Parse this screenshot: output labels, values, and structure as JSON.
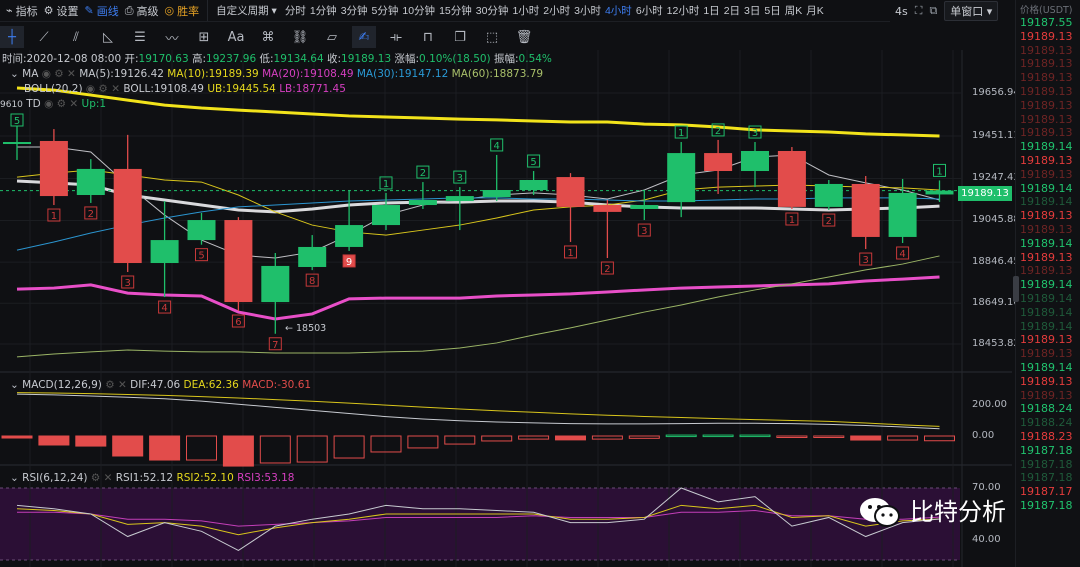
{
  "toolbar": {
    "items": [
      {
        "label": "指标",
        "icon": "chart-icon"
      },
      {
        "label": "设置",
        "icon": "gear-icon"
      },
      {
        "label": "画线",
        "icon": "pen-icon",
        "active": true
      },
      {
        "label": "高级",
        "icon": "printer-icon"
      },
      {
        "label": "胜率",
        "icon": "target-icon",
        "color": "#e7a325"
      }
    ],
    "custom_period": "自定义周期",
    "periods": [
      "分时",
      "1分钟",
      "3分钟",
      "5分钟",
      "10分钟",
      "15分钟",
      "30分钟",
      "1小时",
      "2小时",
      "3小时",
      "4小时",
      "6小时",
      "12小时",
      "1日",
      "2日",
      "3日",
      "5日",
      "周K",
      "月K"
    ],
    "active_period": "4小时",
    "refresh": "4s",
    "window_mode": "单窗口"
  },
  "draw_tools": [
    "crosshair-icon",
    "line-icon",
    "parallel-icon",
    "triangle-icon",
    "horizontal-lines-icon",
    "wave-icon",
    "box-icon",
    "Aa",
    "magnet-icon",
    "link-icon",
    "ruler-icon",
    "brush-icon",
    "measure-icon",
    "lock-icon",
    "copy-icon",
    "select-icon",
    "trash-icon"
  ],
  "info": {
    "time": "时间:2020-12-08 08:00",
    "open_l": "开:",
    "open": "19170.63",
    "high_l": "高:",
    "high": "19237.96",
    "low_l": "低:",
    "low": "19134.64",
    "close_l": "收:",
    "close": "19189.13",
    "chg_l": "涨幅:",
    "chg": "0.10%(18.50)",
    "amp_l": "振幅:",
    "amp": "0.54%"
  },
  "ma_legend": {
    "name": "MA",
    "ma5": "MA(5):19126.42",
    "ma10": "MA(10):19189.39",
    "ma20": "MA(20):19108.49",
    "ma30": "MA(30):19147.12",
    "ma60": "MA(60):18873.79"
  },
  "boll_legend": {
    "name": "BOLL(20,2)",
    "mid": "BOLL:19108.49",
    "ub": "UB:19445.54",
    "lb": "LB:18771.45"
  },
  "td_legend": {
    "name": "TD",
    "up": "Up:1",
    "cut_label": "9610"
  },
  "macd_legend": {
    "name": "MACD(12,26,9)",
    "dif": "DIF:47.06",
    "dea": "DEA:62.36",
    "macd": "MACD:-30.61"
  },
  "rsi_legend": {
    "name": "RSI(6,12,24)",
    "rsi1": "RSI1:52.12",
    "rsi2": "RSI2:52.10",
    "rsi3": "RSI3:53.18"
  },
  "price_axis": [
    "19656.94",
    "19451.11",
    "19247.43",
    "19045.88",
    "18846.45",
    "18649.10",
    "18453.82"
  ],
  "current_price": "19189.13",
  "macd_axis": [
    "200.00",
    "0.00"
  ],
  "rsi_axis": [
    "70.00",
    "40.00"
  ],
  "low_marker": "← 18503",
  "watermark": "比特分析",
  "colors": {
    "up": "#1fbf6b",
    "down": "#e24c4b",
    "boll_ub": "#f2e31b",
    "boll_lb": "#e84fc8",
    "boll_mid": "#d9d9dc",
    "ma5": "#bfbfc4",
    "ma10": "#d8c51c",
    "ma30": "#2b95d0",
    "ma60": "#9bb566",
    "active": "#3d7df0"
  },
  "price_list": {
    "header": "价格(USDT)",
    "rows": [
      [
        "19187.55",
        "pg"
      ],
      [
        "19189.13",
        "pr"
      ],
      [
        "19189.13",
        "pdr"
      ],
      [
        "19189.13",
        "pdr"
      ],
      [
        "19189.13",
        "pdr"
      ],
      [
        "19189.13",
        "pdr"
      ],
      [
        "19189.13",
        "pdr"
      ],
      [
        "19189.13",
        "pdr"
      ],
      [
        "19189.13",
        "pdr"
      ],
      [
        "19189.14",
        "pg"
      ],
      [
        "19189.13",
        "pr"
      ],
      [
        "19189.13",
        "pdr"
      ],
      [
        "19189.14",
        "pg"
      ],
      [
        "19189.14",
        "pdg"
      ],
      [
        "19189.13",
        "pr"
      ],
      [
        "19189.13",
        "pdr"
      ],
      [
        "19189.14",
        "pg"
      ],
      [
        "19189.13",
        "pr"
      ],
      [
        "19189.13",
        "pdr"
      ],
      [
        "19189.14",
        "pg"
      ],
      [
        "19189.14",
        "pdg"
      ],
      [
        "19189.14",
        "pdg"
      ],
      [
        "19189.14",
        "pdg"
      ],
      [
        "19189.13",
        "pr"
      ],
      [
        "19189.13",
        "pdr"
      ],
      [
        "19189.14",
        "pg"
      ],
      [
        "19189.13",
        "pr"
      ],
      [
        "19189.13",
        "pdr"
      ],
      [
        "19188.24",
        "pg"
      ],
      [
        "19188.24",
        "pdg"
      ],
      [
        "19188.23",
        "pr"
      ],
      [
        "19187.18",
        "pg"
      ],
      [
        "19187.18",
        "pdg"
      ],
      [
        "19187.18",
        "pdg"
      ],
      [
        "19187.17",
        "pr"
      ],
      [
        "19187.18",
        "pg"
      ]
    ]
  },
  "chart_data": [
    {
      "type": "candlestick",
      "interval": "4小时",
      "ohlc": [
        [
          19417,
          19527,
          19336,
          19422
        ],
        [
          19427,
          19484,
          19120,
          19163
        ],
        [
          19168,
          19340,
          19130,
          19293
        ],
        [
          19293,
          19456,
          18799,
          18842
        ],
        [
          18842,
          19139,
          18679,
          18952
        ],
        [
          18952,
          19082,
          18930,
          19048
        ],
        [
          19048,
          19062,
          18612,
          18655
        ],
        [
          18655,
          18890,
          18503,
          18828
        ],
        [
          18823,
          18976,
          18808,
          18919
        ],
        [
          18919,
          19192,
          18900,
          19024
        ],
        [
          19024,
          19178,
          19000,
          19120
        ],
        [
          19120,
          19230,
          19101,
          19144
        ],
        [
          19139,
          19206,
          19000,
          19163
        ],
        [
          19158,
          19360,
          19139,
          19192
        ],
        [
          19192,
          19283,
          19168,
          19240
        ],
        [
          19254,
          19273,
          18943,
          19111
        ],
        [
          19120,
          19144,
          18866,
          19087
        ],
        [
          19101,
          19192,
          19048,
          19120
        ],
        [
          19134,
          19422,
          19062,
          19369
        ],
        [
          19369,
          19432,
          19173,
          19283
        ],
        [
          19283,
          19422,
          19206,
          19379
        ],
        [
          19379,
          19398,
          19101,
          19111
        ],
        [
          19111,
          19240,
          19096,
          19221
        ],
        [
          19221,
          19259,
          18909,
          18967
        ],
        [
          18967,
          19245,
          18938,
          19178
        ],
        [
          19170.63,
          19237.96,
          19134.64,
          19189.13
        ]
      ],
      "td": [
        [
          "5",
          "up"
        ],
        [
          "1",
          "dn"
        ],
        [
          "2",
          "dn"
        ],
        [
          "3",
          "dn"
        ],
        [
          "4",
          "dn"
        ],
        [
          "5",
          "dn"
        ],
        [
          "6",
          "dn"
        ],
        [
          "7",
          "dn"
        ],
        [
          "8",
          "dn"
        ],
        [
          "9",
          "dn9"
        ],
        [
          "1",
          "up"
        ],
        [
          "2",
          "up"
        ],
        [
          "3",
          "up"
        ],
        [
          "4",
          "up"
        ],
        [
          "5",
          "up"
        ],
        [
          "1",
          "dn"
        ],
        [
          "2",
          "dn"
        ],
        [
          "3",
          "dn"
        ],
        [
          "1",
          "up"
        ],
        [
          "2",
          "up"
        ],
        [
          "3",
          "up"
        ],
        [
          "1",
          "dn"
        ],
        [
          "2",
          "dn"
        ],
        [
          "3",
          "dn"
        ],
        [
          "4",
          "dn"
        ],
        [
          "1",
          "up"
        ]
      ],
      "series": [
        {
          "name": "UB",
          "key": "boll_ub",
          "width": 3,
          "values": [
            19681,
            19671,
            19647,
            19623,
            19599,
            19585,
            19575,
            19566,
            19556,
            19547,
            19542,
            19537,
            19532,
            19528,
            19523,
            19518,
            19518,
            19508,
            19504,
            19494,
            19480,
            19475,
            19470,
            19461,
            19456,
            19451
          ]
        },
        {
          "name": "LB",
          "key": "boll_lb",
          "width": 3,
          "values": [
            18717,
            18722,
            18737,
            18698,
            18689,
            18684,
            18607,
            18574,
            18598,
            18670,
            18674,
            18674,
            18674,
            18684,
            18689,
            18694,
            18703,
            18713,
            18722,
            18727,
            18732,
            18737,
            18742,
            18756,
            18765,
            18775
          ]
        },
        {
          "name": "BOLL",
          "key": "boll_mid",
          "width": 3,
          "values": [
            19235,
            19226,
            19216,
            19168,
            19144,
            19120,
            19096,
            19087,
            19101,
            19120,
            19130,
            19134,
            19134,
            19139,
            19139,
            19134,
            19120,
            19111,
            19106,
            19106,
            19106,
            19101,
            19096,
            19101,
            19106,
            19115
          ]
        },
        {
          "name": "MA(5)",
          "key": "ma5",
          "width": 1,
          "values": [
            19398,
            19398,
            19374,
            19216,
            19072,
            18952,
            18880,
            18866,
            18895,
            18976,
            19072,
            19120,
            19144,
            19168,
            19178,
            19168,
            19149,
            19192,
            19264,
            19288,
            19350,
            19360,
            19264,
            19226,
            19192,
            19144
          ]
        },
        {
          "name": "MA(10)",
          "key": "ma10",
          "width": 1,
          "values": [
            19254,
            19273,
            19288,
            19264,
            19240,
            19230,
            19168,
            19087,
            19024,
            18991,
            18976,
            19000,
            19024,
            19058,
            19096,
            19111,
            19120,
            19144,
            19192,
            19206,
            19211,
            19216,
            19211,
            19206,
            19202,
            19192
          ]
        },
        {
          "name": "MA(30)",
          "key": "ma30",
          "width": 1,
          "values": [
            18904,
            18943,
            18986,
            19024,
            19058,
            19087,
            19111,
            19120,
            19130,
            19139,
            19144,
            19149,
            19154,
            19154,
            19149,
            19149,
            19144,
            19139,
            19139,
            19144,
            19149,
            19149,
            19154,
            19154,
            19154,
            19149
          ]
        },
        {
          "name": "MA(60)",
          "key": "ma60",
          "width": 1,
          "values": [
            18392,
            18406,
            18416,
            18425,
            18420,
            18416,
            18416,
            18411,
            18411,
            18411,
            18416,
            18420,
            18435,
            18459,
            18497,
            18531,
            18569,
            18607,
            18641,
            18679,
            18713,
            18742,
            18775,
            18809,
            18837,
            18876
          ]
        }
      ]
    },
    {
      "type": "bar+line",
      "name": "MACD(12,26,9)",
      "macd": [
        -13,
        -58,
        -65,
        -129,
        -155,
        -155,
        -194,
        -174,
        -168,
        -142,
        -103,
        -77,
        -52,
        -32,
        -20,
        -25,
        -20,
        -15,
        6,
        6,
        6,
        -3,
        -5,
        -26,
        -26,
        -30.61
      ],
      "filled": [
        1,
        1,
        1,
        1,
        1,
        0,
        1,
        0,
        0,
        0,
        0,
        0,
        0,
        0,
        0,
        1,
        0,
        0,
        0,
        0,
        0,
        0,
        0,
        1,
        0,
        0
      ],
      "dif": [
        270,
        265,
        258,
        250,
        240,
        225,
        205,
        185,
        165,
        145,
        125,
        110,
        98,
        90,
        85,
        80,
        78,
        78,
        80,
        82,
        82,
        80,
        75,
        68,
        58,
        47.06
      ],
      "dea": [
        280,
        277,
        273,
        268,
        262,
        254,
        245,
        235,
        224,
        212,
        199,
        186,
        174,
        163,
        153,
        143,
        134,
        126,
        119,
        112,
        106,
        100,
        94,
        84,
        72,
        62.36
      ]
    },
    {
      "type": "line",
      "name": "RSI(6,12,24)",
      "rsi1": [
        60,
        58,
        55,
        42,
        50,
        45,
        34,
        48,
        52,
        55,
        60,
        58,
        58,
        57,
        56,
        50,
        50,
        52,
        70,
        62,
        65,
        48,
        53,
        42,
        50,
        52.12
      ],
      "rsi2": [
        58,
        57,
        55,
        49,
        50,
        48,
        43,
        47,
        50,
        52,
        55,
        55,
        55,
        55,
        55,
        52,
        52,
        53,
        60,
        58,
        60,
        53,
        54,
        48,
        51,
        52.1
      ],
      "rsi3": [
        56,
        56,
        55,
        52,
        52,
        51,
        48,
        49,
        50,
        51,
        53,
        53,
        53,
        53,
        54,
        53,
        53,
        53,
        56,
        56,
        57,
        54,
        54,
        52,
        52,
        53.18
      ]
    }
  ]
}
